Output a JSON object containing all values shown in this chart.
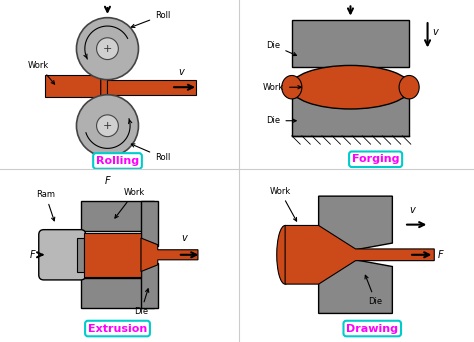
{
  "bg_color": "#ffffff",
  "work_color": "#cc4a1a",
  "die_color": "#888888",
  "roll_color": "#b0b0b0",
  "roll_inner_color": "#d0d0d0",
  "box_color": "#00cccc",
  "text_magenta": "#ff00ff",
  "labels": {
    "rolling": "Rolling",
    "forging": "Forging",
    "extrusion": "Extrusion",
    "drawing": "Drawing"
  }
}
